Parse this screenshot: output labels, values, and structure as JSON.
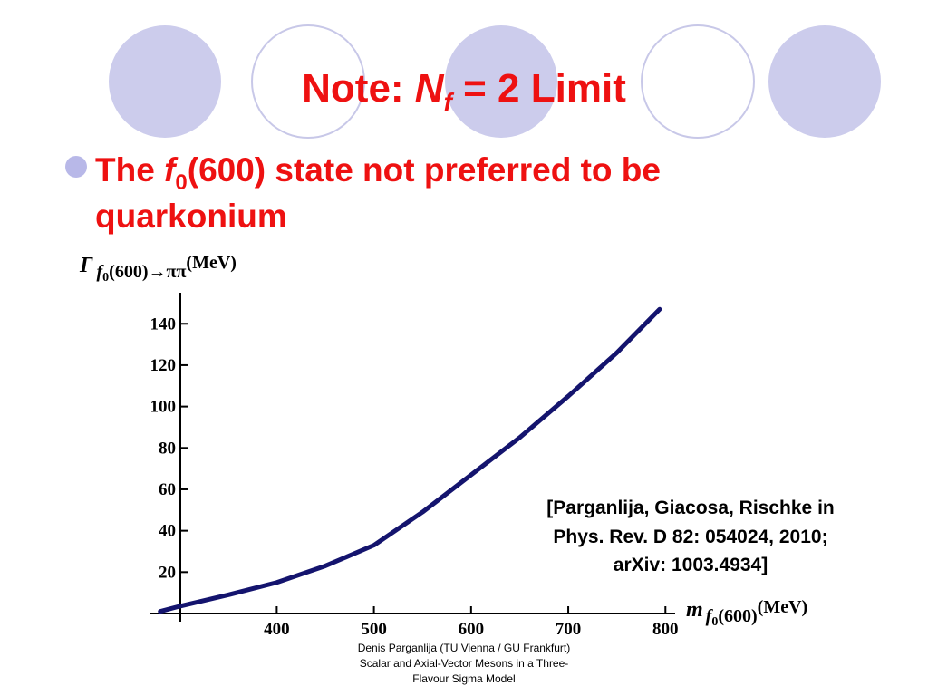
{
  "slide": {
    "title": [
      "Note: ",
      "N",
      "f",
      " = 2 Limit"
    ],
    "bullet": {
      "line1": [
        "The ",
        "f",
        "0",
        "(600) state not preferred to be"
      ],
      "line2": "quarkonium"
    },
    "citation": [
      "[Parganlija, Giacosa, Rischke in",
      "Phys. Rev. D 82: 054024, 2010;",
      "arXiv: 1003.4934]"
    ],
    "footer": [
      "Denis Parganlija (TU Vienna / GU Frankfurt)",
      "Scalar and Axial-Vector Mesons in a Three-",
      "Flavour Sigma Model"
    ]
  },
  "chart_data": {
    "type": "line",
    "y_label": [
      "Γ",
      "f",
      "0",
      "(600)→ππ",
      "(MeV)"
    ],
    "x_label": [
      "m",
      "f",
      "0",
      "(600)",
      "(MeV)"
    ],
    "x": [
      280,
      300,
      350,
      400,
      450,
      500,
      550,
      600,
      650,
      700,
      750,
      794
    ],
    "series": [
      {
        "color": "#14146e",
        "values": [
          1,
          3.5,
          9,
          15,
          23,
          33,
          49,
          67,
          85,
          105,
          126,
          147
        ]
      }
    ],
    "xlim": [
      270,
      810
    ],
    "ylim": [
      0,
      155
    ],
    "xticks": [
      400,
      500,
      600,
      700,
      800
    ],
    "yticks": [
      20,
      40,
      60,
      80,
      100,
      120,
      140
    ]
  }
}
